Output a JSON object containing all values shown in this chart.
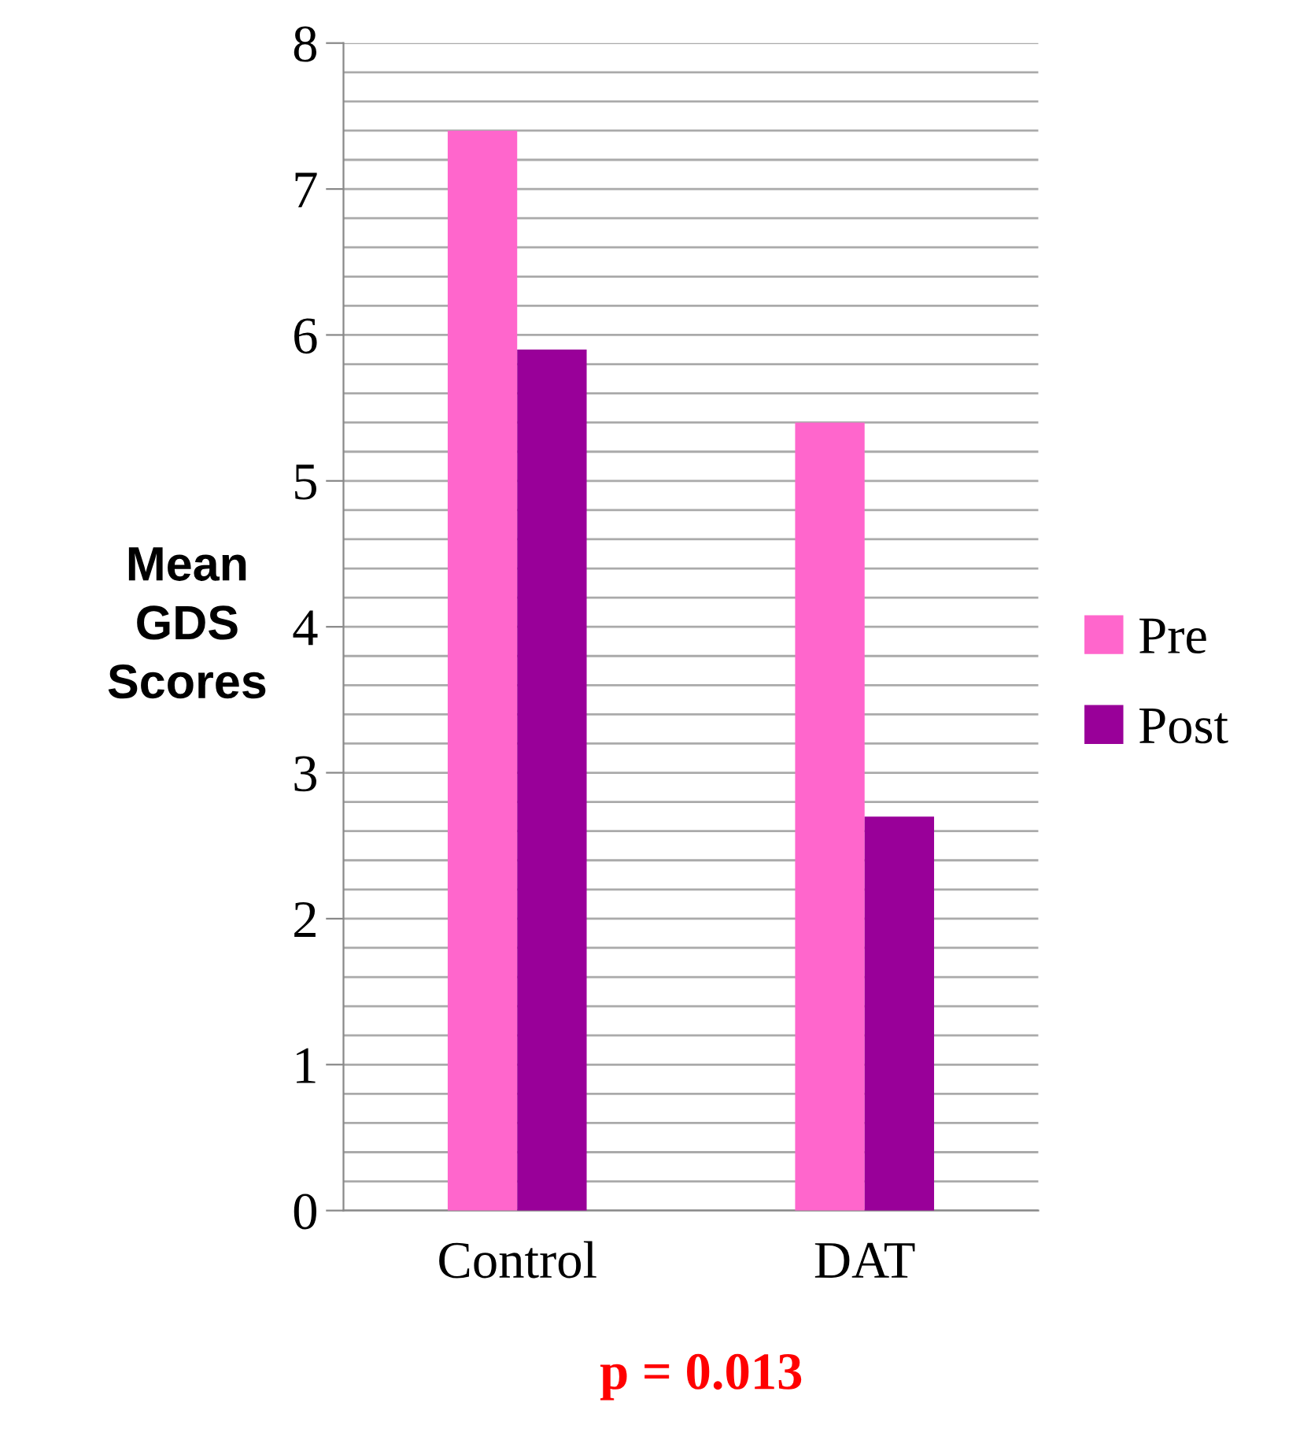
{
  "chart_data": {
    "type": "bar",
    "ylabel": "Mean\nGDS\nScores",
    "categories": [
      "Control",
      "DAT"
    ],
    "series": [
      {
        "name": "Pre",
        "color": "#ff66cc",
        "values": [
          7.4,
          5.4
        ]
      },
      {
        "name": "Post",
        "color": "#990099",
        "values": [
          5.9,
          2.7
        ]
      }
    ],
    "ylim": [
      0,
      8
    ],
    "yticks": [
      0,
      {
        "value": 0.2,
        "label": null
      },
      {
        "value": 0.4,
        "label": null
      },
      {
        "value": 0.6,
        "label": null
      },
      {
        "value": 0.8,
        "label": null
      },
      1,
      {
        "value": 1.2,
        "label": null
      },
      {
        "value": 1.4,
        "label": null
      },
      {
        "value": 1.6,
        "label": null
      },
      {
        "value": 1.8,
        "label": null
      },
      2,
      {
        "value": 2.2,
        "label": null
      },
      {
        "value": 2.4,
        "label": null
      },
      {
        "value": 2.6,
        "label": null
      },
      {
        "value": 2.8,
        "label": null
      },
      3,
      {
        "value": 3.2,
        "label": null
      },
      {
        "value": 3.4,
        "label": null
      },
      {
        "value": 3.6,
        "label": null
      },
      {
        "value": 3.8,
        "label": null
      },
      4,
      {
        "value": 4.2,
        "label": null
      },
      {
        "value": 4.4,
        "label": null
      },
      {
        "value": 4.6,
        "label": null
      },
      {
        "value": 4.8,
        "label": null
      },
      5,
      {
        "value": 5.2,
        "label": null
      },
      {
        "value": 5.4,
        "label": null
      },
      {
        "value": 5.6,
        "label": null
      },
      {
        "value": 5.8,
        "label": null
      },
      6,
      {
        "value": 6.2,
        "label": null
      },
      {
        "value": 6.4,
        "label": null
      },
      {
        "value": 6.6,
        "label": null
      },
      {
        "value": 6.8,
        "label": null
      },
      7,
      {
        "value": 7.2,
        "label": null
      },
      {
        "value": 7.4,
        "label": null
      },
      {
        "value": 7.6,
        "label": null
      },
      {
        "value": 7.8,
        "label": null
      },
      8
    ],
    "grid": "y",
    "legend": "right",
    "annotations": [
      "p = 0.013"
    ]
  }
}
